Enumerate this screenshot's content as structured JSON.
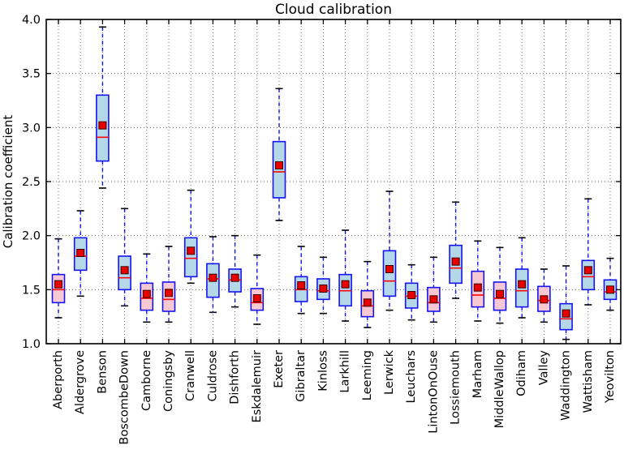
{
  "chart_data": {
    "type": "box",
    "title": "Cloud calibration",
    "ylabel": "Calibration coefficient",
    "xlabel": "",
    "ylim": [
      1.0,
      4.0
    ],
    "ytick_labels": [
      "1.0",
      "1.5",
      "2.0",
      "2.5",
      "3.0",
      "3.5",
      "4.0"
    ],
    "ytick_values": [
      1.0,
      1.5,
      2.0,
      2.5,
      3.0,
      3.5,
      4.0
    ],
    "grid": true,
    "legend": "none",
    "categories": [
      "Aberporth",
      "Aldergrove",
      "Benson",
      "BoscombeDown",
      "Camborne",
      "Coningsby",
      "Cranwell",
      "Culdrose",
      "Dishforth",
      "Eskdalemuir",
      "Exeter",
      "Gibraltar",
      "Kinloss",
      "Larkhill",
      "Leeming",
      "Lerwick",
      "Leuchars",
      "LintonOnOuse",
      "Lossiemouth",
      "Marham",
      "MiddleWallop",
      "Odiham",
      "Valley",
      "Waddington",
      "Wattisham",
      "Yeovilton"
    ],
    "stations": [
      {
        "name": "Aberporth",
        "low": 1.24,
        "q1": 1.38,
        "median": 1.5,
        "q3": 1.64,
        "high": 1.97,
        "mean": 1.55,
        "color": "pink"
      },
      {
        "name": "Aldergrove",
        "low": 1.44,
        "q1": 1.68,
        "median": 1.81,
        "q3": 1.98,
        "high": 2.23,
        "mean": 1.84,
        "color": "blue"
      },
      {
        "name": "Benson",
        "low": 2.44,
        "q1": 2.69,
        "median": 2.91,
        "q3": 3.3,
        "high": 3.93,
        "mean": 3.02,
        "color": "blue"
      },
      {
        "name": "BoscombeDown",
        "low": 1.35,
        "q1": 1.5,
        "median": 1.61,
        "q3": 1.81,
        "high": 2.25,
        "mean": 1.68,
        "color": "blue"
      },
      {
        "name": "Camborne",
        "low": 1.2,
        "q1": 1.31,
        "median": 1.42,
        "q3": 1.56,
        "high": 1.83,
        "mean": 1.46,
        "color": "pink"
      },
      {
        "name": "Coningsby",
        "low": 1.2,
        "q1": 1.3,
        "median": 1.41,
        "q3": 1.57,
        "high": 1.9,
        "mean": 1.47,
        "color": "pink"
      },
      {
        "name": "Cranwell",
        "low": 1.56,
        "q1": 1.62,
        "median": 1.79,
        "q3": 1.98,
        "high": 2.42,
        "mean": 1.86,
        "color": "blue"
      },
      {
        "name": "Culdrose",
        "low": 1.29,
        "q1": 1.43,
        "median": 1.6,
        "q3": 1.74,
        "high": 1.99,
        "mean": 1.61,
        "color": "blue"
      },
      {
        "name": "Dishforth",
        "low": 1.34,
        "q1": 1.48,
        "median": 1.59,
        "q3": 1.69,
        "high": 2.0,
        "mean": 1.61,
        "color": "blue"
      },
      {
        "name": "Eskdalemuir",
        "low": 1.18,
        "q1": 1.31,
        "median": 1.38,
        "q3": 1.51,
        "high": 1.82,
        "mean": 1.42,
        "color": "pink"
      },
      {
        "name": "Exeter",
        "low": 2.14,
        "q1": 2.35,
        "median": 2.59,
        "q3": 2.87,
        "high": 3.36,
        "mean": 2.65,
        "color": "blue"
      },
      {
        "name": "Gibraltar",
        "low": 1.28,
        "q1": 1.39,
        "median": 1.5,
        "q3": 1.62,
        "high": 1.9,
        "mean": 1.54,
        "color": "blue"
      },
      {
        "name": "Kinloss",
        "low": 1.28,
        "q1": 1.41,
        "median": 1.49,
        "q3": 1.6,
        "high": 1.8,
        "mean": 1.51,
        "color": "blue"
      },
      {
        "name": "Larkhill",
        "low": 1.21,
        "q1": 1.35,
        "median": 1.49,
        "q3": 1.64,
        "high": 2.05,
        "mean": 1.55,
        "color": "blue"
      },
      {
        "name": "Leeming",
        "low": 1.15,
        "q1": 1.25,
        "median": 1.35,
        "q3": 1.49,
        "high": 1.76,
        "mean": 1.38,
        "color": "pink"
      },
      {
        "name": "Lerwick",
        "low": 1.31,
        "q1": 1.44,
        "median": 1.58,
        "q3": 1.86,
        "high": 2.41,
        "mean": 1.69,
        "color": "blue"
      },
      {
        "name": "Leuchars",
        "low": 1.22,
        "q1": 1.33,
        "median": 1.44,
        "q3": 1.56,
        "high": 1.73,
        "mean": 1.45,
        "color": "blue"
      },
      {
        "name": "LintonOnOuse",
        "low": 1.2,
        "q1": 1.3,
        "median": 1.38,
        "q3": 1.52,
        "high": 1.8,
        "mean": 1.41,
        "color": "pink"
      },
      {
        "name": "Lossiemouth",
        "low": 1.42,
        "q1": 1.56,
        "median": 1.7,
        "q3": 1.91,
        "high": 2.31,
        "mean": 1.76,
        "color": "blue"
      },
      {
        "name": "Marham",
        "low": 1.21,
        "q1": 1.34,
        "median": 1.45,
        "q3": 1.67,
        "high": 1.95,
        "mean": 1.52,
        "color": "pink"
      },
      {
        "name": "MiddleWallop",
        "low": 1.19,
        "q1": 1.31,
        "median": 1.42,
        "q3": 1.57,
        "high": 1.89,
        "mean": 1.46,
        "color": "pink"
      },
      {
        "name": "Odiham",
        "low": 1.24,
        "q1": 1.34,
        "median": 1.49,
        "q3": 1.69,
        "high": 1.98,
        "mean": 1.55,
        "color": "blue"
      },
      {
        "name": "Valley",
        "low": 1.2,
        "q1": 1.3,
        "median": 1.4,
        "q3": 1.53,
        "high": 1.69,
        "mean": 1.41,
        "color": "pink"
      },
      {
        "name": "Waddington",
        "low": 1.04,
        "q1": 1.13,
        "median": 1.23,
        "q3": 1.37,
        "high": 1.72,
        "mean": 1.28,
        "color": "blue"
      },
      {
        "name": "Wattisham",
        "low": 1.36,
        "q1": 1.5,
        "median": 1.62,
        "q3": 1.77,
        "high": 2.34,
        "mean": 1.68,
        "color": "blue"
      },
      {
        "name": "Yeovilton",
        "low": 1.31,
        "q1": 1.41,
        "median": 1.48,
        "q3": 1.59,
        "high": 1.79,
        "mean": 1.5,
        "color": "blue"
      }
    ],
    "colors": {
      "box_fill_pink": "#F8C8D2",
      "box_fill_blue": "#B5D8E9",
      "box_edge": "#1414F0",
      "whisker": "#1414F0",
      "cap": "#000000",
      "median": "#FF0000",
      "mean_fill": "#E60000",
      "mean_edge": "#3A0000",
      "grid": "#6E6E6E",
      "axis": "#000000"
    }
  }
}
